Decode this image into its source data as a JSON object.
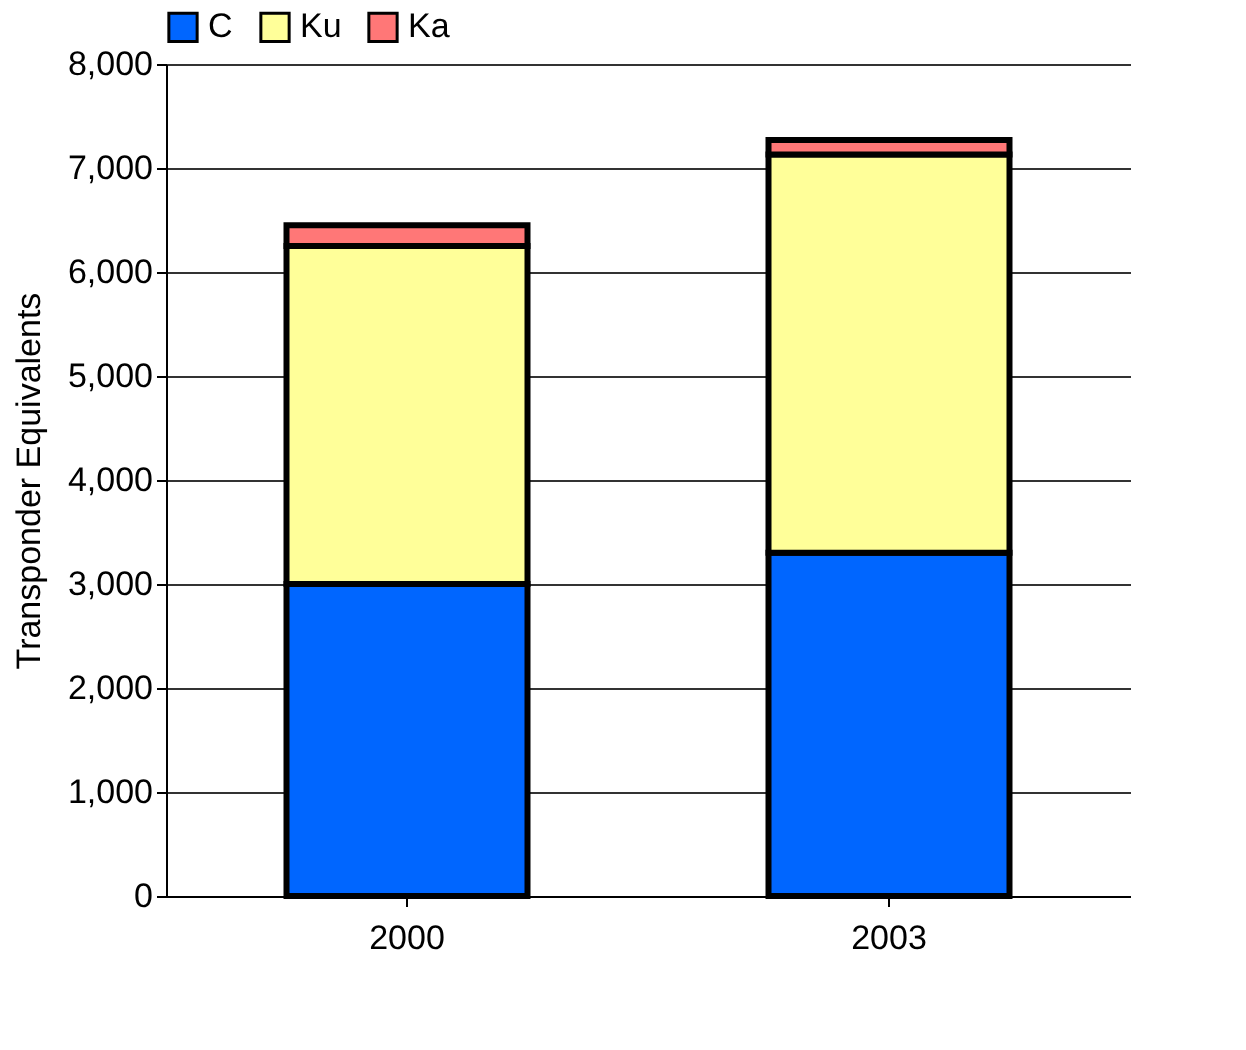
{
  "chart_data": {
    "type": "bar",
    "stacked": true,
    "ylabel": "Transponder Equivalents",
    "categories": [
      "2000",
      "2003"
    ],
    "series": [
      {
        "name": "C",
        "color": "#0066ff",
        "values": [
          3000,
          3300
        ]
      },
      {
        "name": "Ku",
        "color": "#ffff99",
        "values": [
          3250,
          3830
        ]
      },
      {
        "name": "Ka",
        "color": "#ff7777",
        "values": [
          200,
          140
        ]
      }
    ],
    "ylim": [
      0,
      8000
    ],
    "yticks": [
      0,
      {
        "value": 1000,
        "label": "1,000"
      },
      {
        "value": 2000,
        "label": "2,000"
      },
      {
        "value": 3000,
        "label": "3,000"
      },
      {
        "value": 4000,
        "label": "4,000"
      },
      {
        "value": 5000,
        "label": "5,000"
      },
      {
        "value": 6000,
        "label": "6,000"
      },
      {
        "value": 7000,
        "label": "7,000"
      },
      {
        "value": 8000,
        "label": "8,000"
      }
    ],
    "grid": "y",
    "legend": "top"
  }
}
